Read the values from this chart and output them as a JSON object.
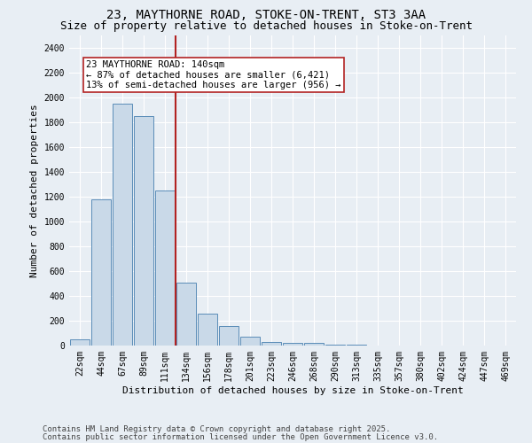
{
  "title_line1": "23, MAYTHORNE ROAD, STOKE-ON-TRENT, ST3 3AA",
  "title_line2": "Size of property relative to detached houses in Stoke-on-Trent",
  "xlabel": "Distribution of detached houses by size in Stoke-on-Trent",
  "ylabel": "Number of detached properties",
  "categories": [
    "22sqm",
    "44sqm",
    "67sqm",
    "89sqm",
    "111sqm",
    "134sqm",
    "156sqm",
    "178sqm",
    "201sqm",
    "223sqm",
    "246sqm",
    "268sqm",
    "290sqm",
    "313sqm",
    "335sqm",
    "357sqm",
    "380sqm",
    "402sqm",
    "424sqm",
    "447sqm",
    "469sqm"
  ],
  "values": [
    50,
    1175,
    1950,
    1850,
    1250,
    510,
    255,
    160,
    70,
    30,
    25,
    20,
    8,
    5,
    3,
    2,
    1,
    1,
    0,
    0,
    0
  ],
  "bar_color": "#c9d9e8",
  "bar_edge_color": "#5b8db8",
  "vline_index": 5,
  "vline_color": "#b22222",
  "annotation_text": "23 MAYTHORNE ROAD: 140sqm\n← 87% of detached houses are smaller (6,421)\n13% of semi-detached houses are larger (956) →",
  "annotation_box_color": "white",
  "annotation_box_edge": "#b22222",
  "ylim": [
    0,
    2500
  ],
  "yticks": [
    0,
    200,
    400,
    600,
    800,
    1000,
    1200,
    1400,
    1600,
    1800,
    2000,
    2200,
    2400
  ],
  "background_color": "#e8eef4",
  "plot_bg_color": "#e8eef4",
  "footer_line1": "Contains HM Land Registry data © Crown copyright and database right 2025.",
  "footer_line2": "Contains public sector information licensed under the Open Government Licence v3.0.",
  "title_fontsize": 10,
  "subtitle_fontsize": 9,
  "axis_label_fontsize": 8,
  "tick_fontsize": 7,
  "annotation_fontsize": 7.5,
  "footer_fontsize": 6.5
}
